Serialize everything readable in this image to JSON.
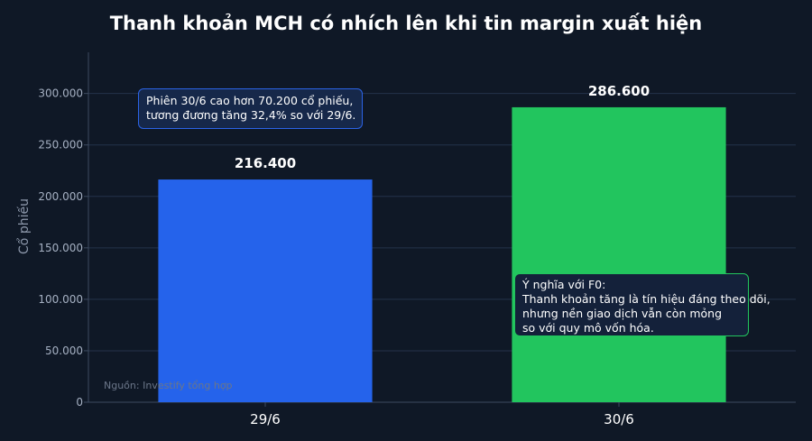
{
  "chart_data": {
    "type": "bar",
    "title": "Thanh khoản MCH có nhích lên khi tin margin xuất hiện",
    "xlabel": "",
    "ylabel": "Cổ phiếu",
    "categories": [
      "29/6",
      "30/6"
    ],
    "values": [
      216400,
      286600
    ],
    "value_labels": [
      "216.400",
      "286.600"
    ],
    "bar_colors": [
      "#2563eb",
      "#22c55e"
    ],
    "ylim": [
      0,
      340000
    ],
    "yticks": [
      0,
      50000,
      100000,
      150000,
      200000,
      250000,
      300000
    ],
    "ytick_labels": [
      "0",
      "50.000",
      "100.000",
      "150.000",
      "200.000",
      "250.000",
      "300.000"
    ],
    "grid": true,
    "annotations": [
      {
        "lines": [
          "Phiên 30/6 cao hơn 70.200 cổ phiếu,",
          "tương đương tăng 32,4% so với 29/6."
        ]
      },
      {
        "lines": [
          "Ý nghĩa với F0:",
          "Thanh khoản tăng là tín hiệu đáng theo dõi,",
          "nhưng nền giao dịch vẫn còn mỏng",
          "so với quy mô vốn hóa."
        ]
      }
    ],
    "source": "Nguồn: Investify tổng hợp"
  },
  "colors": {
    "background": "#0f1826",
    "grid": "#24324a",
    "axis": "#3d4a60"
  }
}
